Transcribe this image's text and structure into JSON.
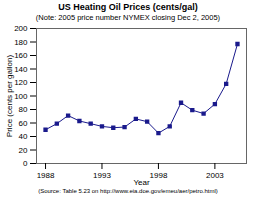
{
  "chart_data": {
    "type": "line",
    "title": "US Heating Oil Prices (cents/gal)",
    "subtitle": "(Note: 2005 price number NYMEX closing Dec 2, 2005)",
    "xlabel": "Year",
    "ylabel": "Price (cents per gallon)",
    "source": "(Source: Table 5.23 on http://www.eia.doe.gov/emeu/aer/petro.html)",
    "x": [
      1988,
      1989,
      1990,
      1991,
      1992,
      1993,
      1994,
      1995,
      1996,
      1997,
      1998,
      1999,
      2000,
      2001,
      2002,
      2003,
      2004,
      2005
    ],
    "values": [
      50,
      59,
      71,
      63,
      59,
      55,
      53,
      54,
      66,
      62,
      45,
      55,
      90,
      79,
      74,
      88,
      118,
      177
    ],
    "color": "#1a1a8c",
    "marker": "square",
    "xlim": [
      1987.2,
      2005.8
    ],
    "xticks": [
      1988,
      1993,
      1998,
      2003
    ],
    "ylim": [
      0,
      200
    ],
    "yticks": [
      0,
      20,
      40,
      60,
      80,
      100,
      120,
      140,
      160,
      180,
      200
    ],
    "grid": false
  }
}
